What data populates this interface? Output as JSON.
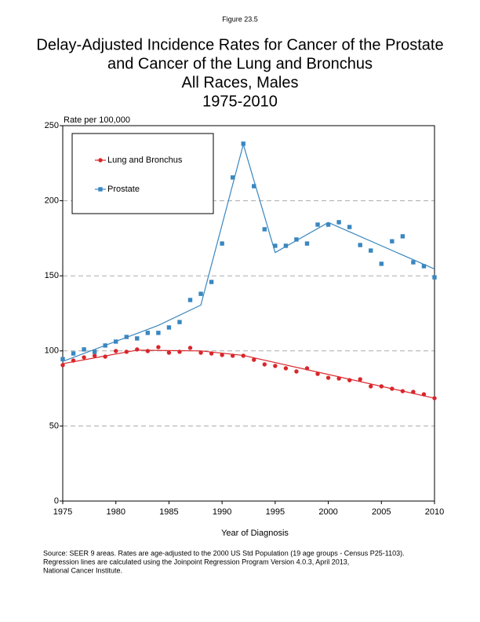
{
  "figure_label": "Figure 23.5",
  "chart_data": {
    "type": "line",
    "title_lines": [
      "Delay-Adjusted Incidence Rates for Cancer of the Prostate",
      "and Cancer of the Lung and Bronchus",
      "All Races, Males",
      "1975-2010"
    ],
    "y_label": "Rate per 100,000",
    "x_label": "Year of Diagnosis",
    "x": [
      1975,
      1976,
      1977,
      1978,
      1979,
      1980,
      1981,
      1982,
      1983,
      1984,
      1985,
      1986,
      1987,
      1988,
      1989,
      1990,
      1991,
      1992,
      1993,
      1994,
      1995,
      1996,
      1997,
      1998,
      1999,
      2000,
      2001,
      2002,
      2003,
      2004,
      2005,
      2006,
      2007,
      2008,
      2009,
      2010
    ],
    "series": [
      {
        "name": "Lung and Bronchus",
        "color": "#d9262b",
        "marker": "circle",
        "values": [
          90.5,
          93.6,
          95.7,
          96.8,
          96.2,
          99.9,
          99.4,
          101,
          99.9,
          102.5,
          98.8,
          99.4,
          102,
          98.8,
          98.3,
          97.3,
          96.8,
          96.8,
          94.1,
          91,
          90,
          88.4,
          86.3,
          88.4,
          84.7,
          82.1,
          81.6,
          80.5,
          81.1,
          76.4,
          76.4,
          74.8,
          73.2,
          72.7,
          71.1,
          68.5
        ],
        "fit_x": [
          1975,
          1982,
          1988,
          1992,
          2010
        ],
        "fit_values": [
          91.5,
          100.5,
          100,
          97,
          68.5
        ]
      },
      {
        "name": "Prostate",
        "color": "#3a87c0",
        "marker": "square",
        "values": [
          94.5,
          98.3,
          101,
          99.4,
          103.6,
          106.2,
          109.3,
          108.3,
          112,
          112,
          115.6,
          119.2,
          133.9,
          138,
          145.9,
          171.5,
          215.5,
          238,
          209.7,
          181,
          170,
          170,
          174.2,
          171.5,
          184.1,
          184.1,
          185.7,
          182.5,
          170.5,
          166.8,
          158,
          173,
          176.3,
          159,
          156.4,
          149
        ],
        "fit_x": [
          1975,
          1984,
          1988,
          1992,
          1995,
          2000,
          2010
        ],
        "fit_values": [
          93,
          117,
          130.5,
          237.5,
          165.5,
          185.5,
          154.5
        ]
      }
    ],
    "xlim": [
      1975,
      2010
    ],
    "xticks": [
      1975,
      1980,
      1985,
      1990,
      1995,
      2000,
      2005,
      2010
    ],
    "ylim": [
      0,
      250
    ],
    "yticks": [
      0,
      50,
      100,
      150,
      200,
      250
    ],
    "grid": true,
    "legend_position": "upper left"
  },
  "source_lines": [
    "Source: SEER 9 areas.  Rates are age-adjusted to the 2000 US Std Population (19 age groups - Census P25-1103).",
    "Regression lines are calculated using the Joinpoint Regression Program Version 4.0.3, April 2013,",
    "National Cancer Institute."
  ]
}
